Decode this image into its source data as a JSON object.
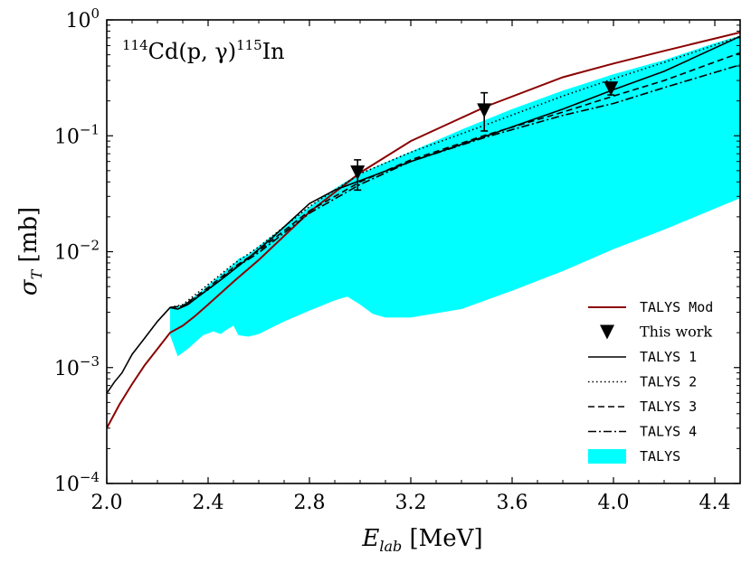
{
  "chart_data": {
    "type": "line",
    "title": "114Cd(p,γ)115In",
    "title_parts": {
      "a_mass": "114",
      "reaction": "Cd(p, γ)",
      "b_mass": "115",
      "product": "In"
    },
    "xlabel": "E_lab [MeV]",
    "xlabel_parts": {
      "symbol": "E",
      "sub": "lab",
      "unit": " [MeV]"
    },
    "ylabel": "σ_T [mb]",
    "ylabel_parts": {
      "symbol": "σ",
      "sub": "T",
      "unit": " [mb]"
    },
    "xlim": [
      2.0,
      4.5
    ],
    "ylim_log10": [
      -4,
      0
    ],
    "yscale": "log",
    "legend_position": "lower-right",
    "x_ticks": [
      {
        "value": 2.0,
        "label": "2.0"
      },
      {
        "value": 2.4,
        "label": "2.4"
      },
      {
        "value": 2.8,
        "label": "2.8"
      },
      {
        "value": 3.2,
        "label": "3.2"
      },
      {
        "value": 3.6,
        "label": "3.6"
      },
      {
        "value": 4.0,
        "label": "4.0"
      },
      {
        "value": 4.4,
        "label": "4.4"
      }
    ],
    "y_ticks": [
      {
        "exp": 0,
        "base": "10",
        "sup": "0"
      },
      {
        "exp": -1,
        "base": "10",
        "sup": "−1"
      },
      {
        "exp": -2,
        "base": "10",
        "sup": "−2"
      },
      {
        "exp": -3,
        "base": "10",
        "sup": "−3"
      },
      {
        "exp": -4,
        "base": "10",
        "sup": "−4"
      }
    ],
    "band": {
      "name": "TALYS",
      "color": "#00ffff",
      "x": [
        2.25,
        2.28,
        2.32,
        2.38,
        2.42,
        2.45,
        2.47,
        2.5,
        2.52,
        2.56,
        2.6,
        2.7,
        2.8,
        2.9,
        2.95,
        3.0,
        3.05,
        3.1,
        3.2,
        3.4,
        3.6,
        3.8,
        4.0,
        4.2,
        4.4,
        4.5
      ],
      "upper": [
        0.00325,
        0.00335,
        0.0037,
        0.0047,
        0.0056,
        0.0063,
        0.0069,
        0.0078,
        0.0087,
        0.0095,
        0.0112,
        0.0165,
        0.0245,
        0.035,
        0.041,
        0.047,
        0.053,
        0.059,
        0.073,
        0.113,
        0.17,
        0.245,
        0.34,
        0.45,
        0.63,
        0.73
      ],
      "lower": [
        0.0019,
        0.00125,
        0.00145,
        0.0019,
        0.00205,
        0.00195,
        0.0021,
        0.0023,
        0.0019,
        0.00185,
        0.00195,
        0.0025,
        0.0031,
        0.0038,
        0.0041,
        0.0035,
        0.0029,
        0.0027,
        0.0027,
        0.0032,
        0.0046,
        0.0068,
        0.0105,
        0.0155,
        0.0235,
        0.029
      ]
    },
    "series": [
      {
        "name": "TALYS Mod",
        "style": "solid",
        "color": "#8b0000",
        "x": [
          2.0,
          2.05,
          2.1,
          2.15,
          2.2,
          2.25,
          2.3,
          2.35,
          2.4,
          2.5,
          2.6,
          2.8,
          3.0,
          3.2,
          3.5,
          3.8,
          4.0,
          4.2,
          4.5
        ],
        "y": [
          0.0003,
          0.00048,
          0.00072,
          0.00105,
          0.00145,
          0.002,
          0.0023,
          0.0028,
          0.0035,
          0.0055,
          0.0085,
          0.022,
          0.048,
          0.09,
          0.18,
          0.32,
          0.42,
          0.54,
          0.78
        ]
      },
      {
        "name": "TALYS 1",
        "style": "solid",
        "color": "#000000",
        "x": [
          2.0,
          2.03,
          2.06,
          2.1,
          2.15,
          2.2,
          2.25,
          2.28,
          2.32,
          2.38,
          2.45,
          2.55,
          2.65,
          2.8,
          2.9,
          3.0,
          3.2,
          3.5,
          3.8,
          4.0,
          4.2,
          4.5
        ],
        "y": [
          0.0006,
          0.00075,
          0.0009,
          0.0013,
          0.0018,
          0.0025,
          0.0033,
          0.0032,
          0.0035,
          0.0044,
          0.0057,
          0.0085,
          0.013,
          0.026,
          0.034,
          0.041,
          0.06,
          0.1,
          0.17,
          0.25,
          0.36,
          0.72
        ]
      },
      {
        "name": "TALYS 2",
        "style": "dotted",
        "color": "#000000",
        "x": [
          2.25,
          2.3,
          2.4,
          2.5,
          2.6,
          2.8,
          3.0,
          3.2,
          3.5,
          3.8,
          4.0,
          4.2,
          4.5
        ],
        "y": [
          0.0033,
          0.0035,
          0.0052,
          0.0078,
          0.011,
          0.0245,
          0.047,
          0.072,
          0.125,
          0.22,
          0.31,
          0.43,
          0.72
        ]
      },
      {
        "name": "TALYS 3",
        "style": "dashed",
        "color": "#000000",
        "x": [
          2.25,
          2.3,
          2.4,
          2.5,
          2.6,
          2.8,
          3.0,
          3.2,
          3.5,
          3.8,
          4.0,
          4.2,
          4.5
        ],
        "y": [
          0.0033,
          0.0034,
          0.0049,
          0.0073,
          0.0102,
          0.0225,
          0.04,
          0.062,
          0.102,
          0.16,
          0.22,
          0.3,
          0.52
        ]
      },
      {
        "name": "TALYS 4",
        "style": "dashdot",
        "color": "#000000",
        "x": [
          2.25,
          2.3,
          2.4,
          2.5,
          2.6,
          2.8,
          3.0,
          3.2,
          3.5,
          3.8,
          4.0,
          4.2,
          4.5
        ],
        "y": [
          0.0033,
          0.0034,
          0.0047,
          0.0071,
          0.0098,
          0.0215,
          0.038,
          0.06,
          0.098,
          0.15,
          0.19,
          0.26,
          0.41
        ]
      }
    ],
    "points": {
      "name": "This work",
      "marker": "triangle-down",
      "color": "#000000",
      "data": [
        {
          "x": 2.99,
          "y": 0.048,
          "yerr_low": 0.034,
          "yerr_high": 0.062
        },
        {
          "x": 3.49,
          "y": 0.165,
          "yerr_low": 0.11,
          "yerr_high": 0.235
        },
        {
          "x": 3.99,
          "y": 0.255,
          "yerr_low": 0.225,
          "yerr_high": 0.285
        }
      ]
    },
    "legend": [
      {
        "label": "TALYS Mod",
        "kind": "line",
        "style": "solid",
        "color": "#8b0000",
        "font": "mono"
      },
      {
        "label": "This work",
        "kind": "marker",
        "color": "#000000",
        "font": "serif"
      },
      {
        "label": "TALYS 1",
        "kind": "line",
        "style": "solid",
        "color": "#000000",
        "font": "mono"
      },
      {
        "label": "TALYS 2",
        "kind": "line",
        "style": "dotted",
        "color": "#000000",
        "font": "mono"
      },
      {
        "label": "TALYS 3",
        "kind": "line",
        "style": "dashed",
        "color": "#000000",
        "font": "mono"
      },
      {
        "label": "TALYS 4",
        "kind": "line",
        "style": "dashdot",
        "color": "#000000",
        "font": "mono"
      },
      {
        "label": "TALYS",
        "kind": "patch",
        "color": "#00ffff",
        "font": "mono"
      }
    ]
  }
}
